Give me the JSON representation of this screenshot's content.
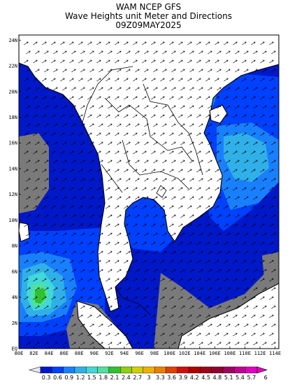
{
  "header": {
    "line1": "WAM NCEP GFS",
    "line2": "Wave Heights unit Meter and Directions",
    "line3": "09Z09MAY2025"
  },
  "axes": {
    "lon_labels": [
      "80E",
      "82E",
      "84E",
      "86E",
      "88E",
      "90E",
      "92E",
      "94E",
      "96E",
      "98E",
      "100E",
      "102E",
      "104E",
      "106E",
      "108E",
      "110E",
      "112E",
      "114E"
    ],
    "lat_labels": [
      "EQ",
      "2N",
      "4N",
      "6N",
      "8N",
      "10N",
      "12N",
      "14N",
      "16N",
      "18N",
      "20N",
      "22N",
      "24N"
    ]
  },
  "legend": {
    "labels": [
      "0.3",
      "0.6",
      "0.9",
      "1.2",
      "1.5",
      "1.8",
      "2.1",
      "2.4",
      "2.7",
      "3",
      "3.3",
      "3.6",
      "3.9",
      "4.2",
      "4.5",
      "4.8",
      "5.1",
      "5.4",
      "5.7",
      "6"
    ],
    "colors": [
      "#0018c8",
      "#0040ff",
      "#1880ff",
      "#30b0e8",
      "#40d8d8",
      "#50e0a0",
      "#30c030",
      "#90d010",
      "#d0d000",
      "#f0b000",
      "#e88000",
      "#e04000",
      "#d01010",
      "#b00000",
      "#a00018",
      "#900030",
      "#a00060",
      "#c00090",
      "#e000c0"
    ]
  },
  "colors": {
    "land": "#ffffff",
    "no_data": "#7a7a7a",
    "coast": "#000000"
  }
}
